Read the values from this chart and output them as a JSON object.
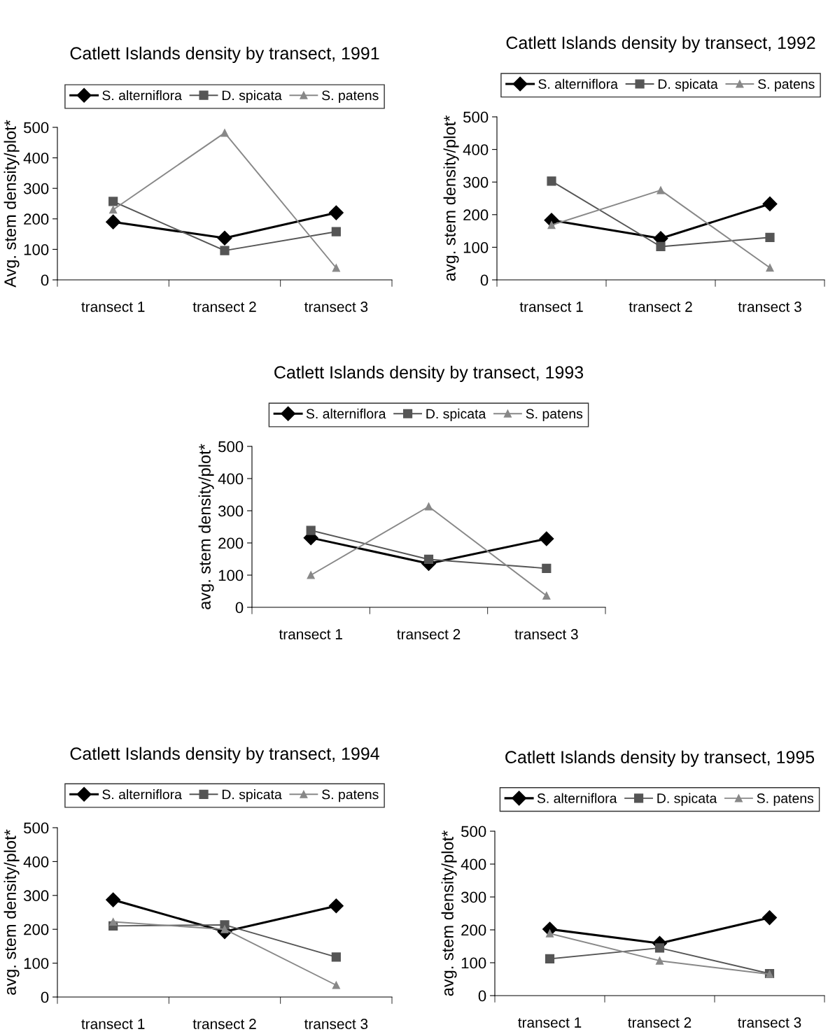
{
  "chart_data": [
    {
      "type": "line",
      "title": "Catlett Islands density by transect, 1991",
      "ylabel": "Avg. stem density/plot*",
      "categories": [
        "transect 1",
        "transect 2",
        "transect 3"
      ],
      "ylim": [
        0,
        500
      ],
      "yticks": [
        0,
        100,
        200,
        300,
        400,
        500
      ],
      "grid": false,
      "legend": "top",
      "series": [
        {
          "name": "S. alterniflora",
          "color": "#000000",
          "marker": "diamond",
          "values": [
            190,
            137,
            220
          ]
        },
        {
          "name": "D. spicata",
          "color": "#555555",
          "marker": "square",
          "values": [
            257,
            96,
            158
          ]
        },
        {
          "name": "S. patens",
          "color": "#888888",
          "marker": "triangle",
          "values": [
            230,
            482,
            39
          ]
        }
      ]
    },
    {
      "type": "line",
      "title": "Catlett Islands density by transect, 1992",
      "ylabel": "avg. stem density/plot*",
      "categories": [
        "transect 1",
        "transect 2",
        "transect 3"
      ],
      "ylim": [
        0,
        500
      ],
      "yticks": [
        0,
        100,
        200,
        300,
        400,
        500
      ],
      "grid": false,
      "legend": "top",
      "series": [
        {
          "name": "S. alterniflora",
          "color": "#000000",
          "marker": "diamond",
          "values": [
            183,
            127,
            233
          ]
        },
        {
          "name": "D. spicata",
          "color": "#555555",
          "marker": "square",
          "values": [
            303,
            102,
            130
          ]
        },
        {
          "name": "S. patens",
          "color": "#888888",
          "marker": "triangle",
          "values": [
            168,
            275,
            37
          ]
        }
      ]
    },
    {
      "type": "line",
      "title": "Catlett Islands density by transect, 1993",
      "ylabel": "avg. stem density/plot*",
      "categories": [
        "transect 1",
        "transect 2",
        "transect 3"
      ],
      "ylim": [
        0,
        500
      ],
      "yticks": [
        0,
        100,
        200,
        300,
        400,
        500
      ],
      "grid": false,
      "legend": "top",
      "series": [
        {
          "name": "S. alterniflora",
          "color": "#000000",
          "marker": "diamond",
          "values": [
            216,
            136,
            213
          ]
        },
        {
          "name": "D. spicata",
          "color": "#555555",
          "marker": "square",
          "values": [
            239,
            149,
            121
          ]
        },
        {
          "name": "S. patens",
          "color": "#888888",
          "marker": "triangle",
          "values": [
            100,
            313,
            36
          ]
        }
      ]
    },
    {
      "type": "line",
      "title": "Catlett Islands density by transect, 1994",
      "ylabel": "avg. stem density/plot*",
      "categories": [
        "transect 1",
        "transect 2",
        "transect 3"
      ],
      "ylim": [
        0,
        500
      ],
      "yticks": [
        0,
        100,
        200,
        300,
        400,
        500
      ],
      "grid": false,
      "legend": "top",
      "series": [
        {
          "name": "S. alterniflora",
          "color": "#000000",
          "marker": "diamond",
          "values": [
            287,
            193,
            269
          ]
        },
        {
          "name": "D. spicata",
          "color": "#555555",
          "marker": "square",
          "values": [
            210,
            213,
            118
          ]
        },
        {
          "name": "S. patens",
          "color": "#888888",
          "marker": "triangle",
          "values": [
            222,
            200,
            35
          ]
        }
      ]
    },
    {
      "type": "line",
      "title": "Catlett Islands density by transect, 1995",
      "ylabel": "avg. stem density/plot*",
      "categories": [
        "transect 1",
        "transect 2",
        "transect 3"
      ],
      "ylim": [
        0,
        500
      ],
      "yticks": [
        0,
        100,
        200,
        300,
        400,
        500
      ],
      "grid": false,
      "legend": "top",
      "series": [
        {
          "name": "S. alterniflora",
          "color": "#000000",
          "marker": "diamond",
          "values": [
            202,
            159,
            237
          ]
        },
        {
          "name": "D. spicata",
          "color": "#555555",
          "marker": "square",
          "values": [
            112,
            145,
            67
          ]
        },
        {
          "name": "S. patens",
          "color": "#888888",
          "marker": "triangle",
          "values": [
            189,
            106,
            65
          ]
        }
      ]
    }
  ]
}
